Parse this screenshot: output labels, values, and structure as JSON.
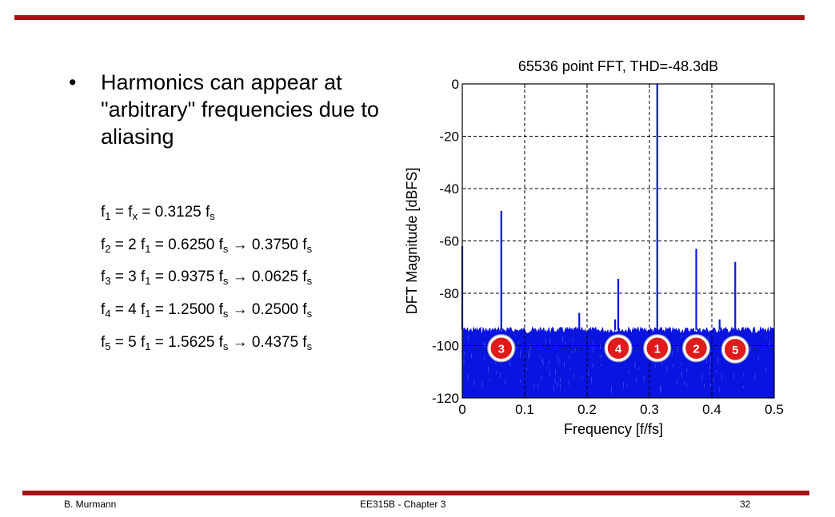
{
  "slide": {
    "bullet_marker": "•",
    "bullet_text": "Harmonics can appear at \"arbitrary\" frequencies due to aliasing",
    "equations": [
      {
        "parts": [
          [
            "f",
            ""
          ],
          [
            "1",
            "sub"
          ],
          [
            " = f",
            ""
          ],
          [
            "x",
            "sub"
          ],
          [
            " = 0.3125 f",
            ""
          ],
          [
            "s",
            "sub"
          ]
        ]
      },
      {
        "parts": [
          [
            "f",
            ""
          ],
          [
            "2",
            "sub"
          ],
          [
            " = 2 f",
            ""
          ],
          [
            "1",
            "sub"
          ],
          [
            " = 0.6250 f",
            ""
          ],
          [
            "s",
            "sub"
          ],
          [
            " → 0.3750 f",
            ""
          ],
          [
            "s",
            "sub"
          ]
        ]
      },
      {
        "parts": [
          [
            "f",
            ""
          ],
          [
            "3",
            "sub"
          ],
          [
            " = 3 f",
            ""
          ],
          [
            "1",
            "sub"
          ],
          [
            " = 0.9375 f",
            ""
          ],
          [
            "s",
            "sub"
          ],
          [
            " → 0.0625 f",
            ""
          ],
          [
            "s",
            "sub"
          ]
        ]
      },
      {
        "parts": [
          [
            "f",
            ""
          ],
          [
            "4",
            "sub"
          ],
          [
            " = 4 f",
            ""
          ],
          [
            "1",
            "sub"
          ],
          [
            " = 1.2500 f",
            ""
          ],
          [
            "s",
            "sub"
          ],
          [
            " → 0.2500 f",
            ""
          ],
          [
            "s",
            "sub"
          ]
        ]
      },
      {
        "parts": [
          [
            "f",
            ""
          ],
          [
            "5",
            "sub"
          ],
          [
            " = 5 f",
            ""
          ],
          [
            "1",
            "sub"
          ],
          [
            " = 1.5625 f",
            ""
          ],
          [
            "s",
            "sub"
          ],
          [
            " → 0.4375 f",
            ""
          ],
          [
            "s",
            "sub"
          ]
        ]
      }
    ]
  },
  "footer": {
    "left": "B. Murmann",
    "center": "EE315B - Chapter 3",
    "right": "32"
  },
  "colors": {
    "rule": "#a31515",
    "spectrum": "#0a14e0",
    "marker_fill": "#e01b1b",
    "grid": "#000000"
  },
  "chart_data": {
    "type": "line",
    "title": "65536 point FFT, THD=-48.3dB",
    "xlabel": "Frequency [f/fs]",
    "ylabel": "DFT Magnitude [dBFS]",
    "xlim": [
      0,
      0.5
    ],
    "ylim": [
      -120,
      0
    ],
    "xticks": [
      0,
      0.1,
      0.2,
      0.3,
      0.4,
      0.5
    ],
    "xtick_labels": [
      "0",
      "0.1",
      "0.2",
      "0.3",
      "0.4",
      "0.5"
    ],
    "yticks": [
      0,
      -20,
      -40,
      -60,
      -80,
      -100,
      -120
    ],
    "ytick_labels": [
      "0",
      "-20",
      "-40",
      "-60",
      "-80",
      "-100",
      "-120"
    ],
    "grid": true,
    "noise_floor": {
      "top": -93,
      "bottom": -120
    },
    "peaks": [
      {
        "x": 0.0,
        "y": -62
      },
      {
        "x": 0.0625,
        "y": -48.5
      },
      {
        "x": 0.1875,
        "y": -87.5
      },
      {
        "x": 0.245,
        "y": -90
      },
      {
        "x": 0.25,
        "y": -74.5
      },
      {
        "x": 0.3125,
        "y": 0
      },
      {
        "x": 0.375,
        "y": -63
      },
      {
        "x": 0.4125,
        "y": -90
      },
      {
        "x": 0.4375,
        "y": -68
      }
    ],
    "markers": [
      {
        "label": "3",
        "x": 0.0625,
        "y": -101
      },
      {
        "label": "4",
        "x": 0.25,
        "y": -101
      },
      {
        "label": "1",
        "x": 0.3125,
        "y": -101
      },
      {
        "label": "2",
        "x": 0.375,
        "y": -101
      },
      {
        "label": "5",
        "x": 0.4375,
        "y": -101.5
      }
    ]
  }
}
